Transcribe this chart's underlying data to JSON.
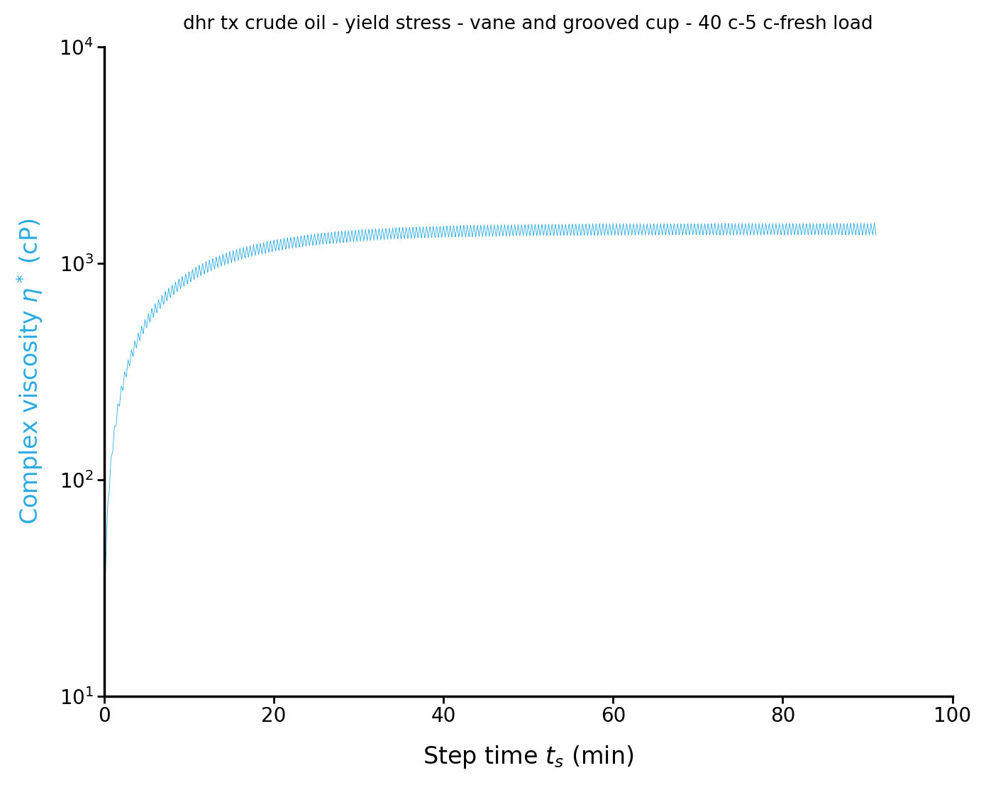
{
  "title": "dhr tx crude oil - yield stress - vane and grooved cup - 40 c-5 c-fresh load",
  "ylabel": "Complex viscosity η* (cP)",
  "xlim": [
    0,
    100
  ],
  "ylim_log": [
    10,
    10000
  ],
  "xticks": [
    0,
    20,
    40,
    60,
    80,
    100
  ],
  "line_color": "#29ABE2",
  "ylabel_color": "#29ABE2",
  "title_color": "#000000",
  "background_color": "#ffffff",
  "t_max": 91,
  "plateau": 1400,
  "initial_value": 20,
  "rise_rate": 0.09,
  "osc_freq": 2.5,
  "osc_amp_log": 0.055,
  "n_points": 5000
}
